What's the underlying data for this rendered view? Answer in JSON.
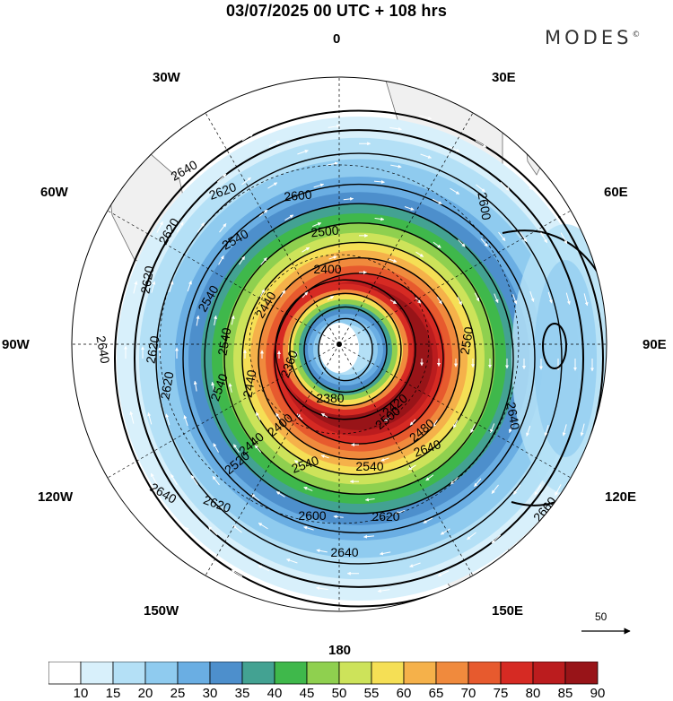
{
  "title": "03/07/2025  00 UTC  + 108 hrs",
  "brand": "MODES",
  "brand_mark": "©",
  "longitude_labels": [
    "0",
    "30E",
    "60E",
    "90E",
    "120E",
    "150E",
    "180",
    "150W",
    "120W",
    "90W",
    "60W",
    "30W"
  ],
  "contour_labels": [
    "2640",
    "2620",
    "2600",
    "2540",
    "2500",
    "2400",
    "2620",
    "2620",
    "2540",
    "2440",
    "2540",
    "2640",
    "2620",
    "2440",
    "2380",
    "2360",
    "2620",
    "2540",
    "2420",
    "2480",
    "2560",
    "2600",
    "2600",
    "2640",
    "2640",
    "2620",
    "2660",
    "2620",
    "2640",
    "2540",
    "2400",
    "2440",
    "2500",
    "2520",
    "2540",
    "2640"
  ],
  "vector_reference": {
    "value": "50"
  },
  "colorbar": {
    "tick_labels": [
      "10",
      "15",
      "20",
      "25",
      "30",
      "35",
      "40",
      "45",
      "50",
      "55",
      "60",
      "65",
      "70",
      "75",
      "80",
      "85",
      "90"
    ],
    "colors": [
      "#ffffff",
      "#d8f0fb",
      "#b4e0f6",
      "#8fcbef",
      "#6aaee3",
      "#4d8fcc",
      "#43a292",
      "#3fb84b",
      "#8fd04f",
      "#cde35a",
      "#f5df55",
      "#f5b14a",
      "#f08a3d",
      "#e75a2e",
      "#d62a23",
      "#bb1c1e",
      "#981418"
    ]
  },
  "colors": {
    "land": "#f0f0f0",
    "coast": "#6a6a6a",
    "contour": "#000000",
    "arrow": "#ffffff"
  }
}
